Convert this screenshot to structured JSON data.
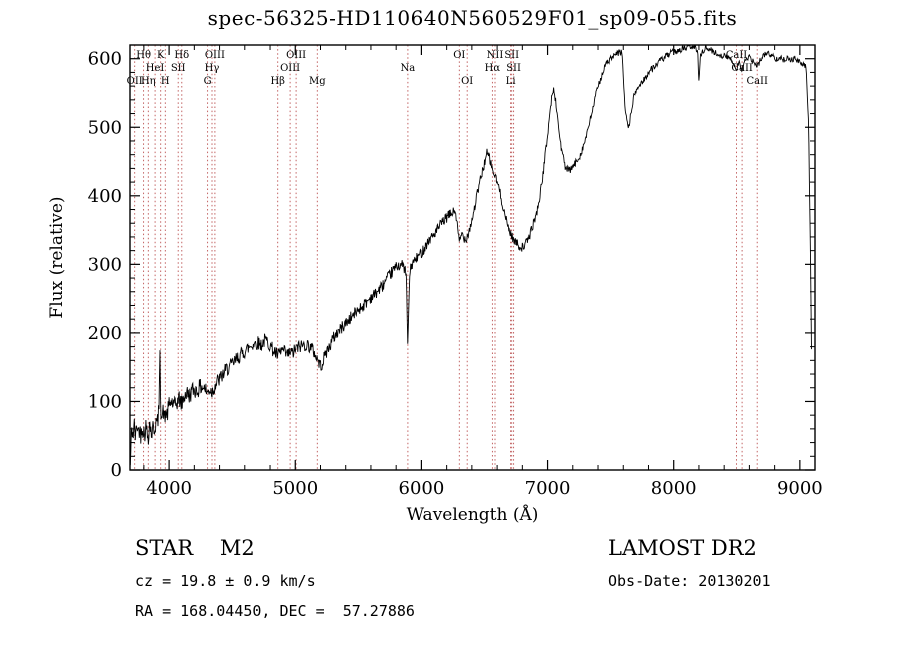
{
  "chart_data": {
    "type": "line",
    "title": "spec-56325-HD110640N560529F01_sp09-055.fits",
    "xlabel": "Wavelength (Å)",
    "ylabel": "Flux (relative)",
    "xlim": [
      3690,
      9120
    ],
    "ylim": [
      0,
      620
    ],
    "x_ticks": [
      4000,
      5000,
      6000,
      7000,
      8000,
      9000
    ],
    "y_ticks": [
      0,
      100,
      200,
      300,
      400,
      500,
      600
    ],
    "x_minor_step": 200,
    "y_minor_step": 20,
    "grid": false,
    "legend": "none",
    "line_color": "#000000",
    "marker_color": "#b03434",
    "spectral_lines": [
      {
        "wavelength": 3727,
        "label": "OII",
        "row": 2
      },
      {
        "wavelength": 3798,
        "label": "Hθ",
        "row": 0
      },
      {
        "wavelength": 3835,
        "label": "Hη",
        "row": 2
      },
      {
        "wavelength": 3889,
        "label": "HeI",
        "row": 1
      },
      {
        "wavelength": 3933,
        "label": "K",
        "row": 0
      },
      {
        "wavelength": 3970,
        "label": "H",
        "row": 2
      },
      {
        "wavelength": 4072,
        "label": "SII",
        "row": 1
      },
      {
        "wavelength": 4101,
        "label": "Hδ",
        "row": 0
      },
      {
        "wavelength": 4305,
        "label": "G",
        "row": 2
      },
      {
        "wavelength": 4340,
        "label": "Hγ",
        "row": 1
      },
      {
        "wavelength": 4363,
        "label": "OIII",
        "row": 0
      },
      {
        "wavelength": 4861,
        "label": "Hβ",
        "row": 2
      },
      {
        "wavelength": 4959,
        "label": "OIII",
        "row": 1
      },
      {
        "wavelength": 5007,
        "label": "OIII",
        "row": 0
      },
      {
        "wavelength": 5175,
        "label": "Mg",
        "row": 2
      },
      {
        "wavelength": 5893,
        "label": "Na",
        "row": 1
      },
      {
        "wavelength": 6300,
        "label": "OI",
        "row": 0
      },
      {
        "wavelength": 6363,
        "label": "OI",
        "row": 2
      },
      {
        "wavelength": 6583,
        "label": "NII",
        "row": 0
      },
      {
        "wavelength": 6563,
        "label": "Hα",
        "row": 1
      },
      {
        "wavelength": 6707,
        "label": "Li",
        "row": 2
      },
      {
        "wavelength": 6716,
        "label": "SII",
        "row": 0
      },
      {
        "wavelength": 6731,
        "label": "SII",
        "row": 1
      },
      {
        "wavelength": 8498,
        "label": "CaII",
        "row": 0
      },
      {
        "wavelength": 8542,
        "label": "CaII",
        "row": 1
      },
      {
        "wavelength": 8662,
        "label": "CaII",
        "row": 2
      }
    ],
    "series": [
      {
        "name": "spectrum",
        "points": [
          [
            3692,
            4
          ],
          [
            3698,
            40
          ],
          [
            3705,
            60
          ],
          [
            3715,
            52
          ],
          [
            3725,
            65
          ],
          [
            3735,
            45
          ],
          [
            3745,
            70
          ],
          [
            3755,
            55
          ],
          [
            3765,
            62
          ],
          [
            3775,
            50
          ],
          [
            3785,
            66
          ],
          [
            3795,
            58
          ],
          [
            3805,
            52
          ],
          [
            3815,
            64
          ],
          [
            3825,
            55
          ],
          [
            3835,
            48
          ],
          [
            3845,
            70
          ],
          [
            3855,
            60
          ],
          [
            3865,
            52
          ],
          [
            3875,
            65
          ],
          [
            3885,
            58
          ],
          [
            3895,
            72
          ],
          [
            3905,
            65
          ],
          [
            3915,
            80
          ],
          [
            3922,
            95
          ],
          [
            3928,
            185
          ],
          [
            3934,
            90
          ],
          [
            3945,
            75
          ],
          [
            3955,
            88
          ],
          [
            3965,
            72
          ],
          [
            3975,
            85
          ],
          [
            3985,
            80
          ],
          [
            4000,
            95
          ],
          [
            4020,
            100
          ],
          [
            4040,
            92
          ],
          [
            4060,
            98
          ],
          [
            4080,
            104
          ],
          [
            4101,
            96
          ],
          [
            4120,
            108
          ],
          [
            4140,
            112
          ],
          [
            4160,
            108
          ],
          [
            4180,
            115
          ],
          [
            4200,
            118
          ],
          [
            4220,
            115
          ],
          [
            4240,
            120
          ],
          [
            4260,
            122
          ],
          [
            4280,
            120
          ],
          [
            4305,
            112
          ],
          [
            4320,
            118
          ],
          [
            4340,
            114
          ],
          [
            4360,
            122
          ],
          [
            4380,
            128
          ],
          [
            4400,
            132
          ],
          [
            4430,
            140
          ],
          [
            4460,
            148
          ],
          [
            4490,
            152
          ],
          [
            4520,
            158
          ],
          [
            4550,
            165
          ],
          [
            4580,
            170
          ],
          [
            4610,
            175
          ],
          [
            4640,
            180
          ],
          [
            4670,
            184
          ],
          [
            4700,
            186
          ],
          [
            4730,
            183
          ],
          [
            4760,
            190
          ],
          [
            4790,
            185
          ],
          [
            4820,
            176
          ],
          [
            4861,
            166
          ],
          [
            4880,
            172
          ],
          [
            4900,
            175
          ],
          [
            4920,
            170
          ],
          [
            4940,
            168
          ],
          [
            4960,
            172
          ],
          [
            4980,
            170
          ],
          [
            5000,
            176
          ],
          [
            5030,
            180
          ],
          [
            5060,
            182
          ],
          [
            5090,
            183
          ],
          [
            5120,
            180
          ],
          [
            5150,
            172
          ],
          [
            5175,
            162
          ],
          [
            5200,
            152
          ],
          [
            5220,
            158
          ],
          [
            5240,
            170
          ],
          [
            5270,
            180
          ],
          [
            5300,
            192
          ],
          [
            5330,
            200
          ],
          [
            5360,
            206
          ],
          [
            5390,
            212
          ],
          [
            5420,
            218
          ],
          [
            5450,
            224
          ],
          [
            5480,
            230
          ],
          [
            5510,
            236
          ],
          [
            5540,
            240
          ],
          [
            5570,
            246
          ],
          [
            5600,
            252
          ],
          [
            5630,
            256
          ],
          [
            5660,
            262
          ],
          [
            5690,
            268
          ],
          [
            5720,
            276
          ],
          [
            5750,
            284
          ],
          [
            5780,
            292
          ],
          [
            5810,
            298
          ],
          [
            5840,
            300
          ],
          [
            5865,
            295
          ],
          [
            5880,
            285
          ],
          [
            5893,
            178
          ],
          [
            5906,
            280
          ],
          [
            5920,
            298
          ],
          [
            5950,
            306
          ],
          [
            5980,
            312
          ],
          [
            6010,
            320
          ],
          [
            6040,
            330
          ],
          [
            6070,
            338
          ],
          [
            6100,
            344
          ],
          [
            6130,
            352
          ],
          [
            6160,
            360
          ],
          [
            6190,
            366
          ],
          [
            6220,
            372
          ],
          [
            6250,
            376
          ],
          [
            6270,
            378
          ],
          [
            6300,
            332
          ],
          [
            6320,
            345
          ],
          [
            6350,
            336
          ],
          [
            6380,
            350
          ],
          [
            6410,
            372
          ],
          [
            6440,
            400
          ],
          [
            6470,
            425
          ],
          [
            6500,
            448
          ],
          [
            6520,
            462
          ],
          [
            6540,
            455
          ],
          [
            6563,
            438
          ],
          [
            6580,
            430
          ],
          [
            6610,
            415
          ],
          [
            6640,
            390
          ],
          [
            6670,
            365
          ],
          [
            6700,
            348
          ],
          [
            6730,
            336
          ],
          [
            6760,
            330
          ],
          [
            6790,
            324
          ],
          [
            6820,
            328
          ],
          [
            6850,
            338
          ],
          [
            6880,
            355
          ],
          [
            6910,
            372
          ],
          [
            6940,
            400
          ],
          [
            6970,
            440
          ],
          [
            7000,
            490
          ],
          [
            7030,
            540
          ],
          [
            7050,
            556
          ],
          [
            7070,
            530
          ],
          [
            7090,
            495
          ],
          [
            7110,
            468
          ],
          [
            7140,
            442
          ],
          [
            7170,
            436
          ],
          [
            7200,
            442
          ],
          [
            7230,
            450
          ],
          [
            7260,
            460
          ],
          [
            7290,
            476
          ],
          [
            7320,
            495
          ],
          [
            7350,
            520
          ],
          [
            7380,
            545
          ],
          [
            7410,
            565
          ],
          [
            7440,
            582
          ],
          [
            7470,
            594
          ],
          [
            7500,
            600
          ],
          [
            7530,
            604
          ],
          [
            7560,
            608
          ],
          [
            7590,
            610
          ],
          [
            7605,
            555
          ],
          [
            7620,
            515
          ],
          [
            7645,
            500
          ],
          [
            7665,
            525
          ],
          [
            7685,
            545
          ],
          [
            7705,
            555
          ],
          [
            7735,
            562
          ],
          [
            7765,
            570
          ],
          [
            7795,
            578
          ],
          [
            7825,
            585
          ],
          [
            7855,
            590
          ],
          [
            7885,
            596
          ],
          [
            7915,
            600
          ],
          [
            7945,
            604
          ],
          [
            7975,
            608
          ],
          [
            8005,
            610
          ],
          [
            8050,
            613
          ],
          [
            8100,
            616
          ],
          [
            8150,
            618
          ],
          [
            8190,
            612
          ],
          [
            8200,
            565
          ],
          [
            8210,
            605
          ],
          [
            8250,
            616
          ],
          [
            8300,
            612
          ],
          [
            8350,
            606
          ],
          [
            8400,
            604
          ],
          [
            8450,
            600
          ],
          [
            8480,
            592
          ],
          [
            8498,
            584
          ],
          [
            8515,
            596
          ],
          [
            8542,
            584
          ],
          [
            8560,
            596
          ],
          [
            8600,
            602
          ],
          [
            8630,
            596
          ],
          [
            8662,
            588
          ],
          [
            8690,
            600
          ],
          [
            8720,
            606
          ],
          [
            8750,
            608
          ],
          [
            8780,
            604
          ],
          [
            8810,
            600
          ],
          [
            8840,
            602
          ],
          [
            8870,
            598
          ],
          [
            8900,
            602
          ],
          [
            8930,
            598
          ],
          [
            8960,
            600
          ],
          [
            8990,
            596
          ],
          [
            9020,
            592
          ],
          [
            9050,
            588
          ],
          [
            9070,
            500
          ],
          [
            9085,
            300
          ],
          [
            9095,
            120
          ]
        ]
      }
    ],
    "noise_profile": [
      [
        3692,
        15
      ],
      [
        4500,
        11
      ],
      [
        5500,
        9
      ],
      [
        6500,
        7
      ],
      [
        7500,
        5
      ],
      [
        9095,
        4
      ]
    ]
  },
  "footer": {
    "class_label": "STAR    M2",
    "survey": "LAMOST DR2",
    "cz": "cz = 19.8 ± 0.9 km/s",
    "obs_date": "Obs-Date: 20130201",
    "coords": "RA = 168.04450, DEC =  57.27886"
  }
}
